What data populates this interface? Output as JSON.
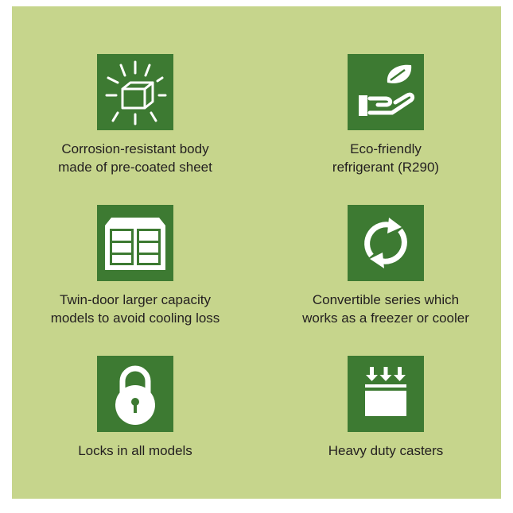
{
  "features": [
    {
      "lines": [
        "Corrosion-resistant body",
        "made of pre-coated sheet"
      ]
    },
    {
      "lines": [
        "Eco-friendly",
        "refrigerant (R290)"
      ]
    },
    {
      "lines": [
        "Twin-door larger capacity",
        "models to avoid cooling loss"
      ]
    },
    {
      "lines": [
        "Convertible series which",
        "works as a freezer or cooler"
      ]
    },
    {
      "lines": [
        "Locks in all models"
      ]
    },
    {
      "lines": [
        "Heavy duty casters"
      ]
    }
  ]
}
